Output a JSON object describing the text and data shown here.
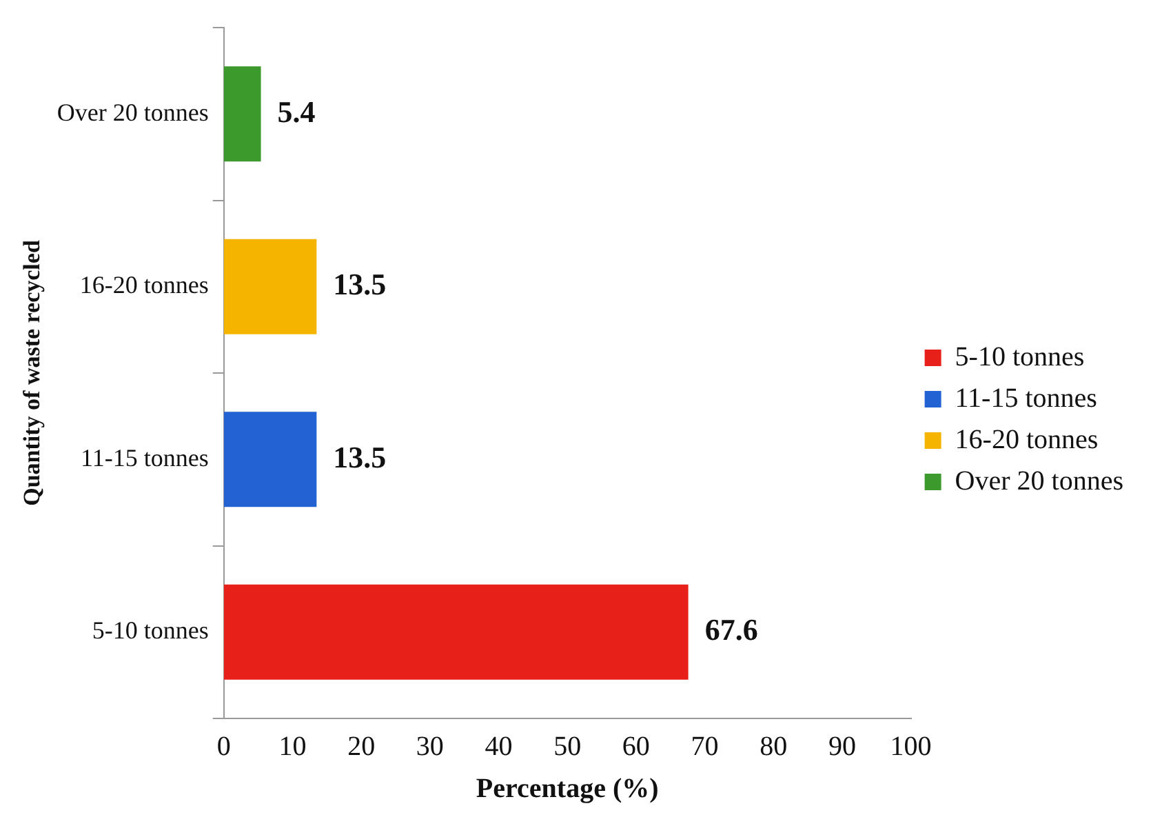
{
  "chart_data": {
    "type": "bar",
    "orientation": "horizontal",
    "stacked": true,
    "categories": [
      "Over 20 tonnes",
      "16-20 tonnes",
      "11-15 tonnes",
      "5-10 tonnes"
    ],
    "series": [
      {
        "name": "5-10 tonnes",
        "color": "#e8201a",
        "values": [
          null,
          null,
          null,
          67.6
        ]
      },
      {
        "name": "11-15 tonnes",
        "color": "#2262d2",
        "values": [
          null,
          null,
          13.5,
          null
        ]
      },
      {
        "name": "16-20 tonnes",
        "color": "#f5b400",
        "values": [
          null,
          13.5,
          null,
          null
        ]
      },
      {
        "name": "Over 20 tonnes",
        "color": "#3c9a2c",
        "values": [
          5.4,
          null,
          null,
          null
        ]
      }
    ],
    "xlabel": "Percentage (%)",
    "ylabel": "Quantity of waste recycled",
    "xlim": [
      0,
      100
    ],
    "xticks": [
      0,
      10,
      20,
      30,
      40,
      50,
      60,
      70,
      80,
      90,
      100
    ],
    "grid": false,
    "legend": "right",
    "data_labels": true
  }
}
